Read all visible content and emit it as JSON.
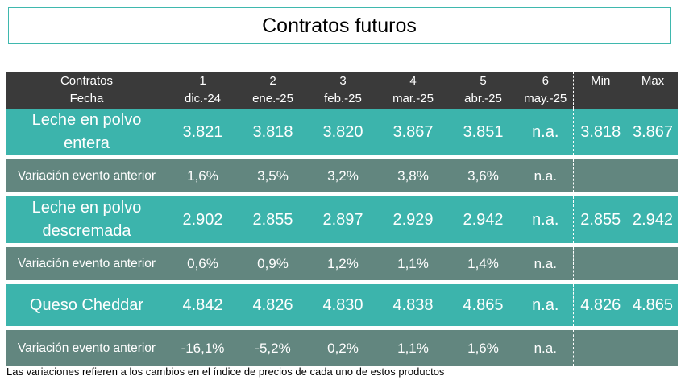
{
  "title": "Contratos futuros",
  "header": {
    "row1": [
      "Contratos",
      "1",
      "2",
      "3",
      "4",
      "5",
      "6",
      "Min",
      "Max"
    ],
    "row2": [
      "Fecha",
      "dic.-24",
      "ene.-25",
      "feb.-25",
      "mar.-25",
      "abr.-25",
      "may.-25",
      "",
      ""
    ]
  },
  "rows": [
    {
      "product": [
        "Leche en polvo",
        "entera"
      ],
      "values": [
        "3.821",
        "3.818",
        "3.820",
        "3.867",
        "3.851",
        "n.a."
      ],
      "min": "3.818",
      "max": "3.867",
      "variation_label": "Variación evento anterior",
      "variations": [
        "1,6%",
        "3,5%",
        "3,2%",
        "3,8%",
        "3,6%",
        "n.a."
      ]
    },
    {
      "product": [
        "Leche en polvo",
        "descremada"
      ],
      "values": [
        "2.902",
        "2.855",
        "2.897",
        "2.929",
        "2.942",
        "n.a."
      ],
      "min": "2.855",
      "max": "2.942",
      "variation_label": "Variación evento anterior",
      "variations": [
        "0,6%",
        "0,9%",
        "1,2%",
        "1,1%",
        "1,4%",
        "n.a."
      ]
    },
    {
      "product": [
        "Queso Cheddar"
      ],
      "values": [
        "4.842",
        "4.826",
        "4.830",
        "4.838",
        "4.865",
        "n.a."
      ],
      "min": "4.826",
      "max": "4.865",
      "variation_label": "Variación evento anterior",
      "variations": [
        "-16,1%",
        "-5,2%",
        "0,2%",
        "1,1%",
        "1,6%",
        "n.a."
      ]
    }
  ],
  "footnote": "Las variaciones refieren a los cambios en el índice de precios de cada uno de estos productos",
  "colors": {
    "header_bg": "#3a3a3a",
    "product_row_bg": "#3cb4ac",
    "variation_row_bg": "#62867f",
    "title_border": "#3fb8ae"
  }
}
